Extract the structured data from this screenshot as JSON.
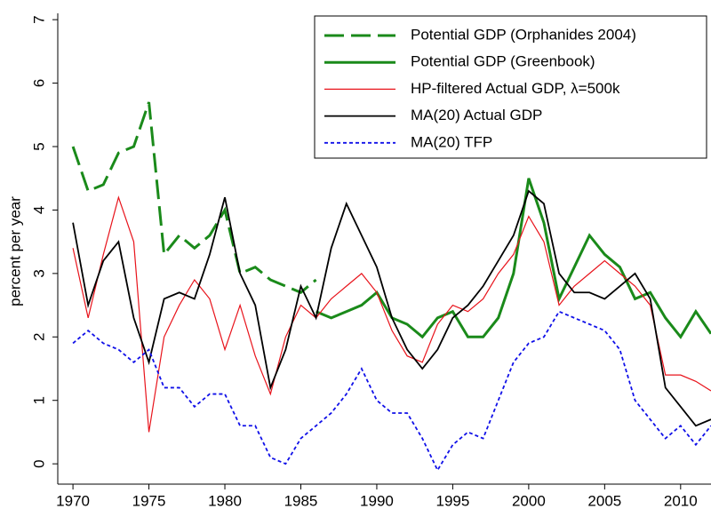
{
  "chart_data": {
    "type": "line",
    "y_label": "percent per year",
    "x": [
      1970,
      1971,
      1972,
      1973,
      1974,
      1975,
      1976,
      1977,
      1978,
      1979,
      1980,
      1981,
      1982,
      1983,
      1984,
      1985,
      1986,
      1987,
      1988,
      1989,
      1990,
      1991,
      1992,
      1993,
      1994,
      1995,
      1996,
      1997,
      1998,
      1999,
      2000,
      2001,
      2002,
      2003,
      2004,
      2005,
      2006,
      2007,
      2008,
      2009,
      2010,
      2011,
      2012
    ],
    "xlim": [
      1969,
      2012
    ],
    "xticks": [
      1970,
      1975,
      1980,
      1985,
      1990,
      1995,
      2000,
      2005,
      2010
    ],
    "ylim": [
      -0.32,
      7.1
    ],
    "yticks": [
      0,
      1,
      2,
      3,
      4,
      5,
      6,
      7
    ],
    "grid": false,
    "legend": "top-right",
    "series": [
      {
        "name": "Potential GDP (Orphanides 2004)",
        "color": "#1a8a1a",
        "style": "dashed",
        "width": 3,
        "values": [
          5.0,
          4.3,
          4.4,
          4.9,
          5.0,
          5.7,
          3.3,
          3.6,
          3.4,
          3.6,
          4.0,
          3.0,
          3.1,
          2.9,
          2.8,
          2.7,
          2.9,
          null,
          null,
          null,
          null,
          null,
          null,
          null,
          null,
          null,
          null,
          null,
          null,
          null,
          null,
          null,
          null,
          null,
          null,
          null,
          null,
          null,
          null,
          null,
          null,
          null,
          null
        ]
      },
      {
        "name": "Potential GDP (Greenbook)",
        "color": "#1a8a1a",
        "style": "solid",
        "width": 3,
        "values": [
          null,
          null,
          null,
          null,
          null,
          null,
          null,
          null,
          null,
          null,
          null,
          null,
          null,
          null,
          null,
          null,
          2.4,
          2.3,
          2.4,
          2.5,
          2.7,
          2.3,
          2.2,
          2.0,
          2.3,
          2.4,
          2.0,
          2.0,
          2.3,
          3.0,
          4.5,
          3.8,
          2.6,
          3.1,
          3.6,
          3.3,
          3.1,
          2.6,
          2.7,
          2.3,
          2.0,
          2.4,
          2.05
        ]
      },
      {
        "name": "HP-filtered Actual GDP, λ=500k",
        "color": "#e8131b",
        "style": "solid",
        "width": 1.2,
        "values": [
          3.4,
          2.3,
          3.3,
          4.2,
          3.5,
          0.5,
          2.0,
          2.5,
          2.9,
          2.6,
          1.8,
          2.5,
          1.7,
          1.1,
          2.0,
          2.5,
          2.3,
          2.6,
          2.8,
          3.0,
          2.7,
          2.1,
          1.7,
          1.6,
          2.2,
          2.5,
          2.4,
          2.6,
          3.0,
          3.3,
          3.9,
          3.5,
          2.5,
          2.8,
          3.0,
          3.2,
          3.0,
          2.8,
          2.5,
          1.4,
          1.4,
          1.3,
          1.15
        ]
      },
      {
        "name": "MA(20) Actual GDP",
        "color": "#000000",
        "style": "solid",
        "width": 1.8,
        "values": [
          3.8,
          2.5,
          3.2,
          3.5,
          2.3,
          1.6,
          2.6,
          2.7,
          2.6,
          3.3,
          4.2,
          3.0,
          2.5,
          1.2,
          1.8,
          2.8,
          2.3,
          3.4,
          4.1,
          3.6,
          3.1,
          2.3,
          1.8,
          1.5,
          1.8,
          2.3,
          2.5,
          2.8,
          3.2,
          3.6,
          4.3,
          4.1,
          3.0,
          2.7,
          2.7,
          2.6,
          2.8,
          3.0,
          2.6,
          1.2,
          0.9,
          0.6,
          0.7
        ]
      },
      {
        "name": "MA(20) TFP",
        "color": "#1010e8",
        "style": "dotted",
        "width": 1.8,
        "values": [
          1.9,
          2.1,
          1.9,
          1.8,
          1.6,
          1.8,
          1.2,
          1.2,
          0.9,
          1.1,
          1.1,
          0.6,
          0.6,
          0.1,
          0.0,
          0.4,
          0.6,
          0.8,
          1.1,
          1.5,
          1.0,
          0.8,
          0.8,
          0.4,
          -0.1,
          0.3,
          0.5,
          0.4,
          1.0,
          1.6,
          1.9,
          2.0,
          2.4,
          2.3,
          2.2,
          2.1,
          1.8,
          1.0,
          0.7,
          0.4,
          0.6,
          0.3,
          0.6
        ]
      }
    ]
  }
}
